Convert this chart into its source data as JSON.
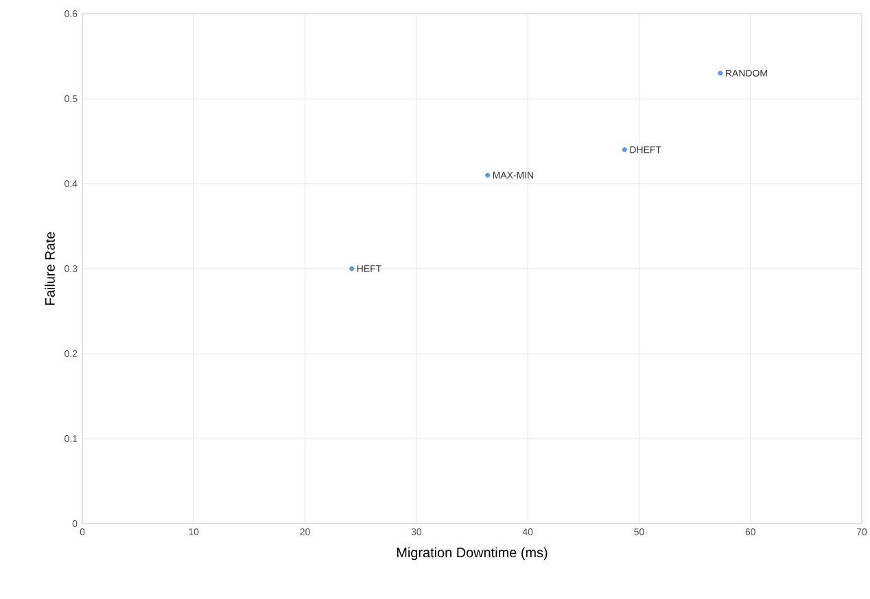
{
  "chart_data": {
    "type": "scatter",
    "xlabel": "Migration Downtime (ms)",
    "ylabel": "Failure  Rate",
    "x": [
      24.2,
      36.4,
      48.7,
      57.3
    ],
    "values": [
      0.3,
      0.41,
      0.44,
      0.53
    ],
    "color": "#5b9bd5",
    "grid": true,
    "xlim": [
      0,
      70
    ],
    "xticks": [
      0,
      10,
      20,
      30,
      40,
      50,
      60,
      70
    ],
    "ylim": [
      0,
      0.6
    ],
    "yticks": [
      0,
      0.1,
      0.2,
      0.3,
      0.4,
      0.5,
      0.6
    ],
    "annotations": [
      {
        "text": "HEFT",
        "x": 24.2,
        "y": 0.3
      },
      {
        "text": "MAX-MIN",
        "x": 36.4,
        "y": 0.41
      },
      {
        "text": "DHEFT",
        "x": 48.7,
        "y": 0.44
      },
      {
        "text": "RANDOM",
        "x": 57.3,
        "y": 0.53
      }
    ]
  }
}
